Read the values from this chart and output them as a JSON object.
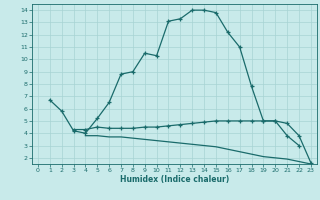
{
  "xlabel": "Humidex (Indice chaleur)",
  "bg_color": "#c8eaea",
  "grid_color": "#a8d4d4",
  "line_color": "#1a6b6b",
  "xlim": [
    -0.5,
    23.5
  ],
  "ylim": [
    1.5,
    14.5
  ],
  "yticks": [
    2,
    3,
    4,
    5,
    6,
    7,
    8,
    9,
    10,
    11,
    12,
    13,
    14
  ],
  "xticks": [
    0,
    1,
    2,
    3,
    4,
    5,
    6,
    7,
    8,
    9,
    10,
    11,
    12,
    13,
    14,
    15,
    16,
    17,
    18,
    19,
    20,
    21,
    22,
    23
  ],
  "line1_x": [
    1,
    2,
    3,
    4,
    5,
    6,
    7,
    8,
    9,
    10,
    11,
    12,
    13,
    14,
    15,
    16,
    17,
    18,
    19,
    20,
    21,
    22
  ],
  "line1_y": [
    6.7,
    5.8,
    4.2,
    4.0,
    5.2,
    6.5,
    8.8,
    9.0,
    10.5,
    10.3,
    13.1,
    13.3,
    14.0,
    14.0,
    13.8,
    12.2,
    11.0,
    7.8,
    5.0,
    5.0,
    3.8,
    3.0
  ],
  "line2_x": [
    3,
    4,
    5,
    6,
    7,
    8,
    9,
    10,
    11,
    12,
    13,
    14,
    15,
    16,
    17,
    18,
    19,
    20,
    21,
    22,
    23
  ],
  "line2_y": [
    4.3,
    4.3,
    4.5,
    4.4,
    4.4,
    4.4,
    4.5,
    4.5,
    4.6,
    4.7,
    4.8,
    4.9,
    5.0,
    5.0,
    5.0,
    5.0,
    5.0,
    5.0,
    4.8,
    3.8,
    1.6
  ],
  "line3_x": [
    4,
    5,
    6,
    7,
    8,
    9,
    10,
    11,
    12,
    13,
    14,
    15,
    16,
    17,
    18,
    19,
    20,
    21,
    22,
    23
  ],
  "line3_y": [
    3.8,
    3.8,
    3.7,
    3.7,
    3.6,
    3.5,
    3.4,
    3.3,
    3.2,
    3.1,
    3.0,
    2.9,
    2.7,
    2.5,
    2.3,
    2.1,
    2.0,
    1.9,
    1.7,
    1.5
  ]
}
